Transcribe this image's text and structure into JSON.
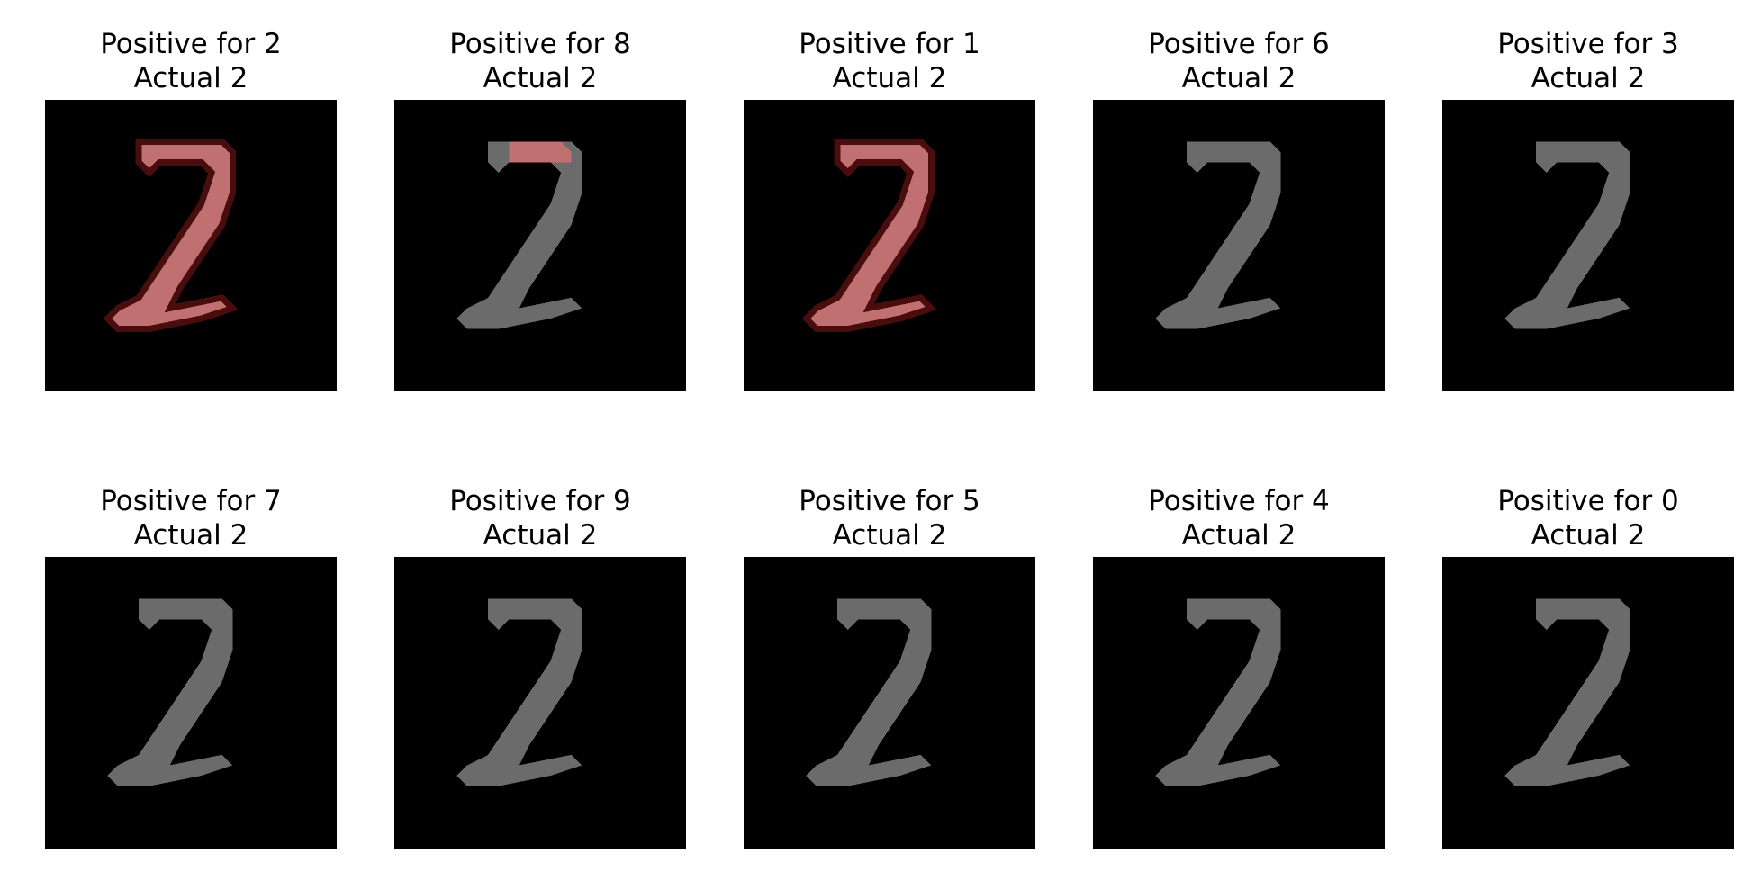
{
  "panels": [
    {
      "title": "Positive for 2",
      "subtitle": "Actual 2",
      "highlight": "full"
    },
    {
      "title": "Positive for 8",
      "subtitle": "Actual 2",
      "highlight": "top"
    },
    {
      "title": "Positive for 1",
      "subtitle": "Actual 2",
      "highlight": "full"
    },
    {
      "title": "Positive for 6",
      "subtitle": "Actual 2",
      "highlight": "none"
    },
    {
      "title": "Positive for 3",
      "subtitle": "Actual 2",
      "highlight": "none"
    },
    {
      "title": "Positive for 7",
      "subtitle": "Actual 2",
      "highlight": "none"
    },
    {
      "title": "Positive for 9",
      "subtitle": "Actual 2",
      "highlight": "none"
    },
    {
      "title": "Positive for 5",
      "subtitle": "Actual 2",
      "highlight": "none"
    },
    {
      "title": "Positive for 4",
      "subtitle": "Actual 2",
      "highlight": "none"
    },
    {
      "title": "Positive for 0",
      "subtitle": "Actual 2",
      "highlight": "none"
    }
  ],
  "colors": {
    "background": "#000000",
    "digit": "#6b6b6b",
    "highlight": "#c07070",
    "highlight_edge": "#4a0d0d"
  }
}
